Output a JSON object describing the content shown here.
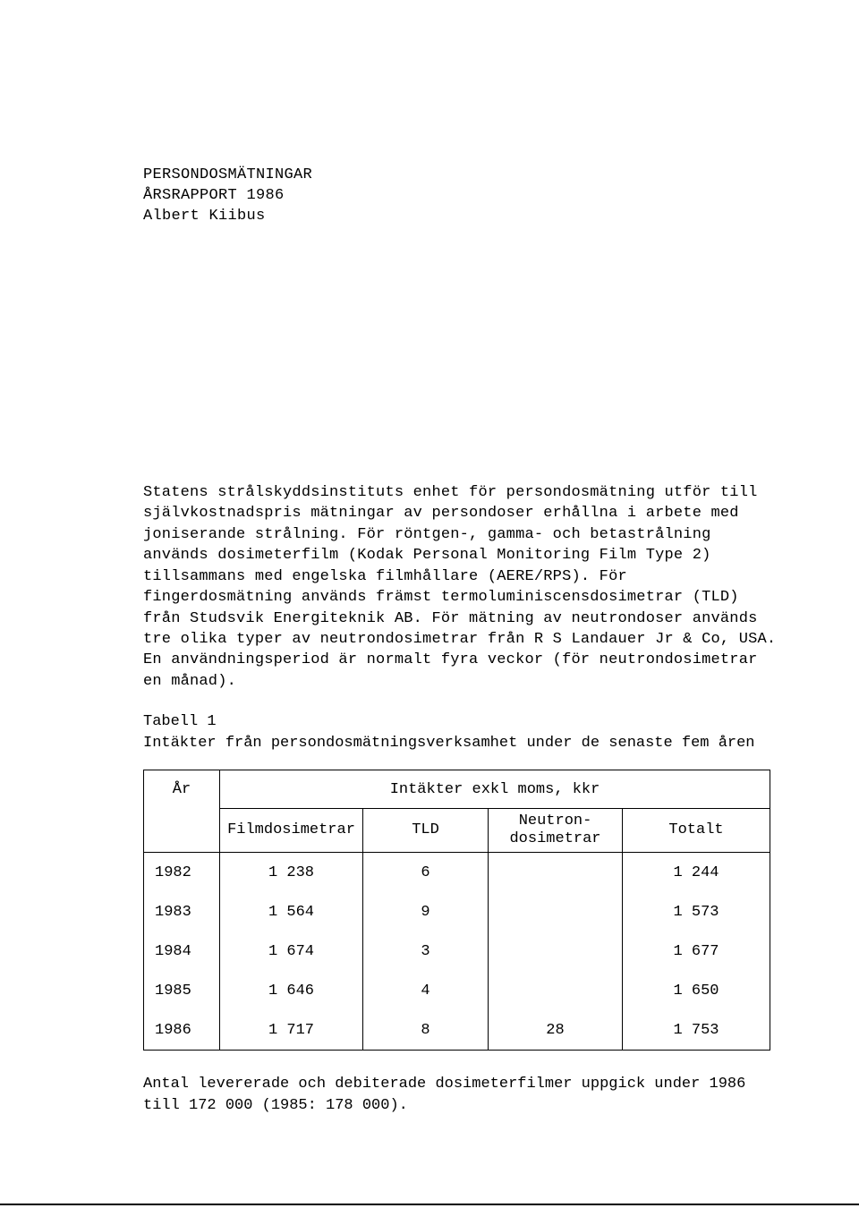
{
  "header": {
    "line1": "PERSONDOSMÄTNINGAR",
    "line2": "ÅRSRAPPORT 1986",
    "line3": "Albert Kiibus"
  },
  "body": "Statens strålskyddsinstituts enhet för persondosmätning utför till självkostnadspris mätningar av persondoser erhållna i arbete med joniserande strålning. För röntgen-, gamma- och betastrålning används dosimeterfilm (Kodak Personal Monitoring Film Type 2) tillsammans med engelska filmhållare (AERE/RPS). För fingerdosmätning används främst termoluminiscensdosimetrar (TLD) från Studsvik Energiteknik AB. För mätning av neutrondoser används tre olika typer av neutrondosimetrar från R S Landauer Jr & Co, USA. En användningsperiod är normalt fyra veckor (för neutrondosimetrar en månad).",
  "caption": {
    "line1": "Tabell 1",
    "line2": "Intäkter från persondosmätningsverksamhet under de senaste fem åren"
  },
  "table": {
    "year_head": "År",
    "span_head": "Intäkter exkl moms, kkr",
    "cols": {
      "film": "Filmdosimetrar",
      "tld": "TLD",
      "neutron": "Neutron-\ndosimetrar",
      "total": "Totalt"
    },
    "rows": [
      {
        "year": "1982",
        "film": "1 238",
        "tld": "6",
        "neut": "",
        "tot": "1 244"
      },
      {
        "year": "1983",
        "film": "1 564",
        "tld": "9",
        "neut": "",
        "tot": "1 573"
      },
      {
        "year": "1984",
        "film": "1 674",
        "tld": "3",
        "neut": "",
        "tot": "1 677"
      },
      {
        "year": "1985",
        "film": "1 646",
        "tld": "4",
        "neut": "",
        "tot": "1 650"
      },
      {
        "year": "1986",
        "film": "1 717",
        "tld": "8",
        "neut": "28",
        "tot": "1 753"
      }
    ]
  },
  "footer": "Antal levererade och debiterade dosimeterfilmer uppgick under 1986 till 172 000 (1985: 178 000)."
}
